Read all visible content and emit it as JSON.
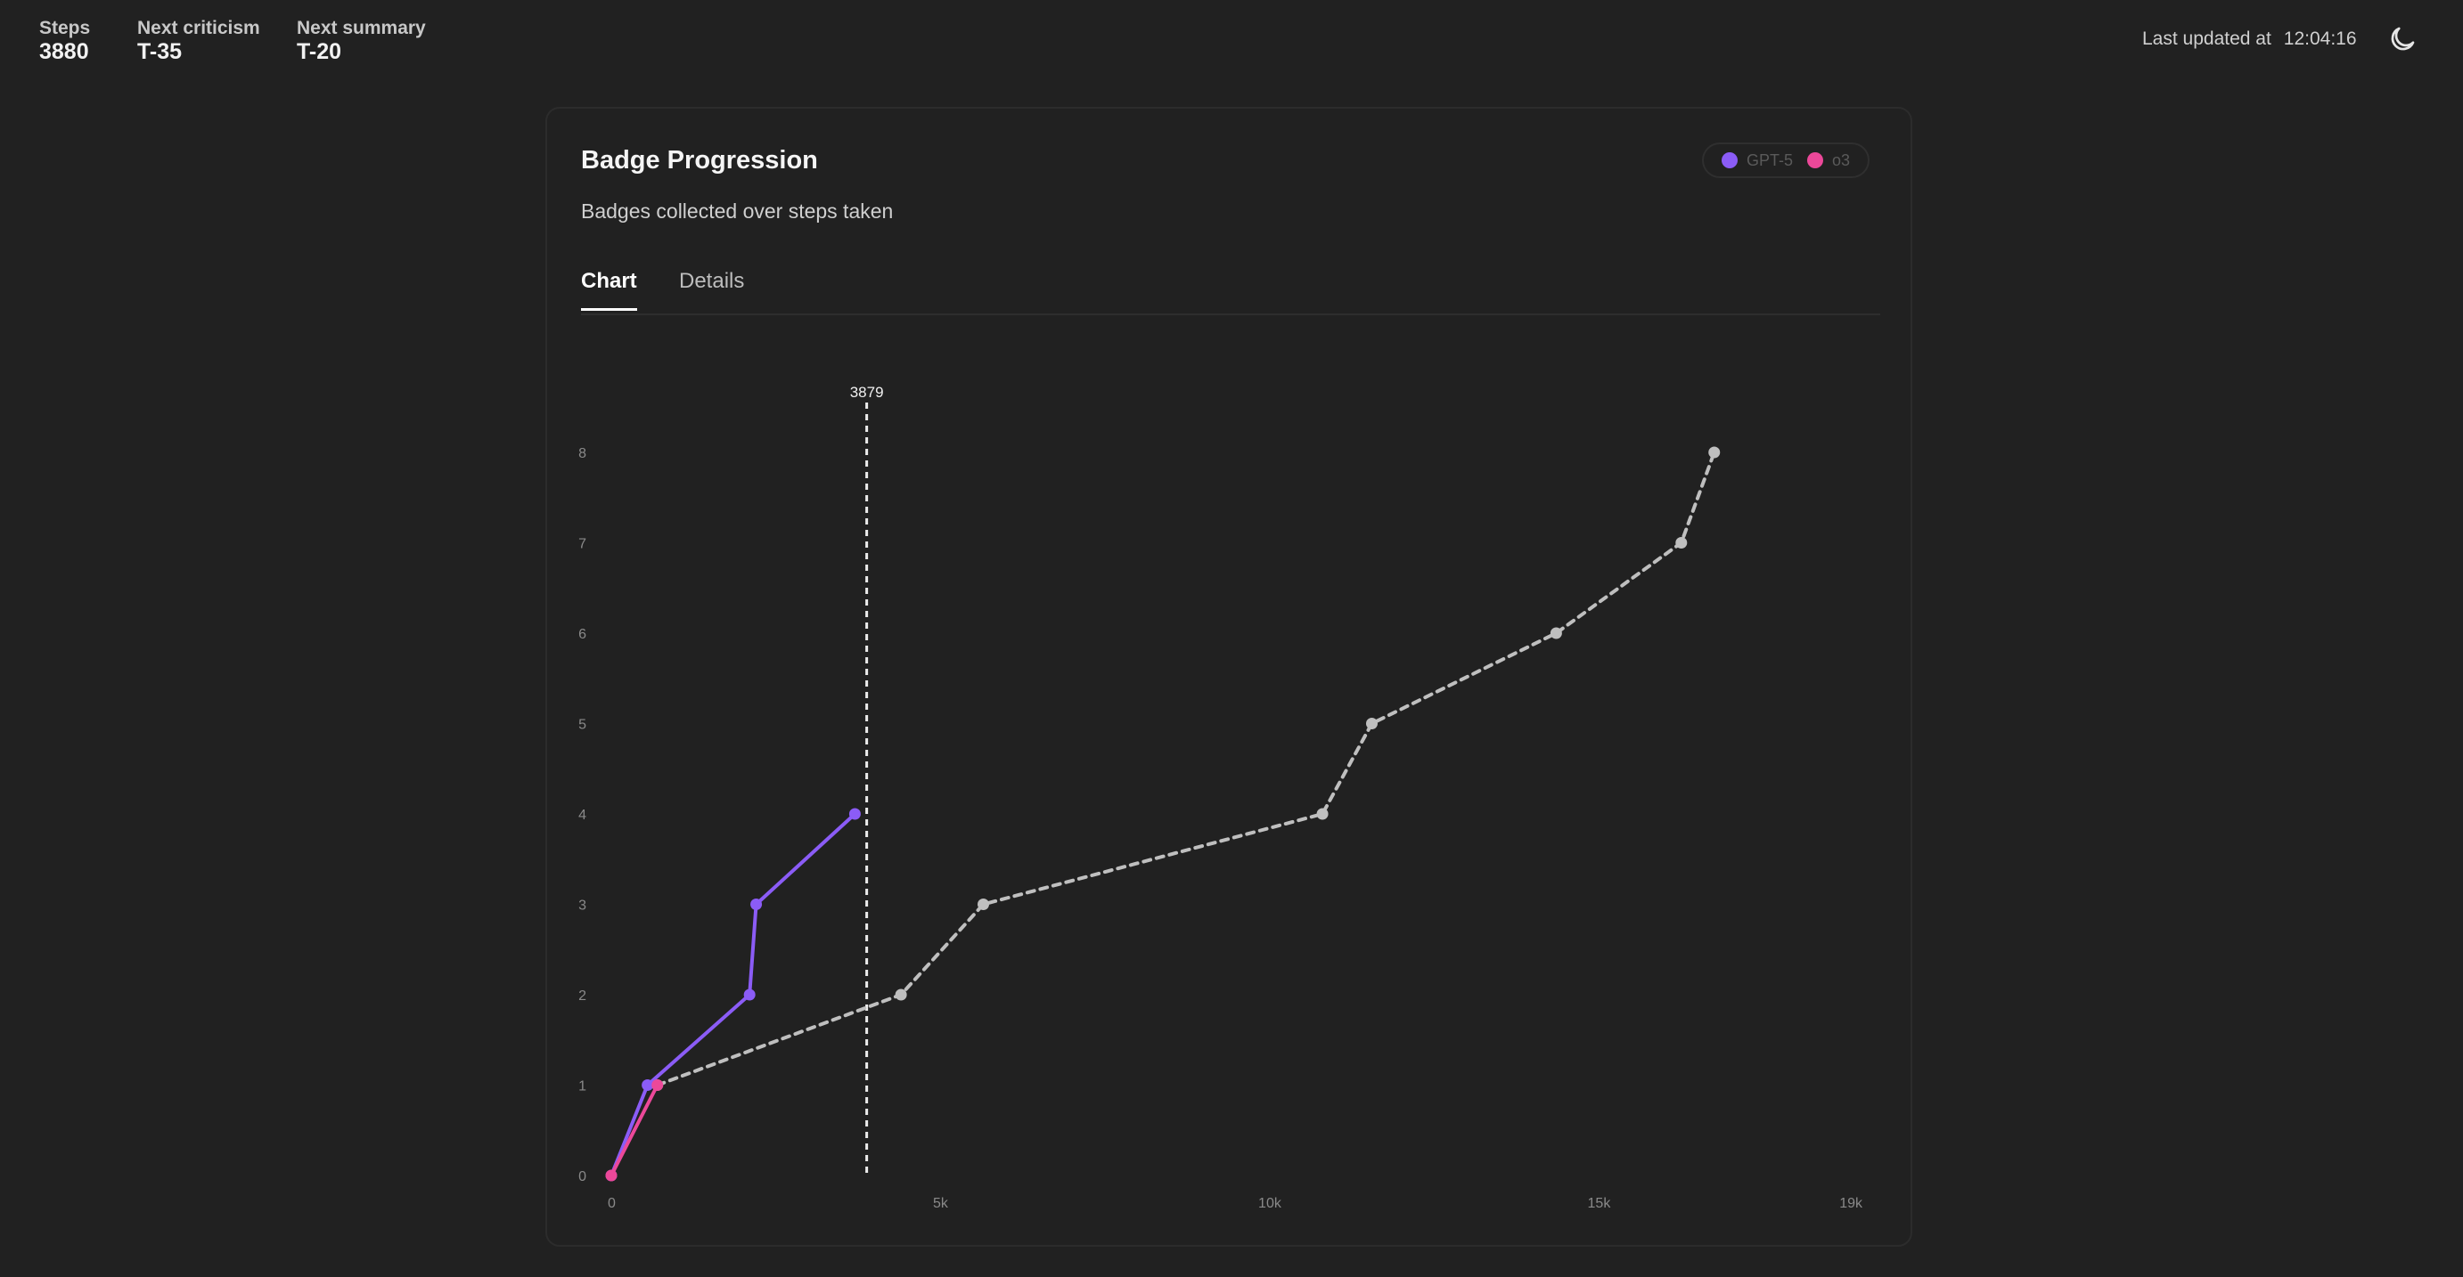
{
  "topbar": {
    "stats": [
      {
        "label": "Steps",
        "value": "3880"
      },
      {
        "label": "Next criticism",
        "value": "T-35"
      },
      {
        "label": "Next summary",
        "value": "T-20"
      }
    ],
    "updated_label": "Last updated at",
    "updated_time": "12:04:16",
    "theme_icon": "moon-icon"
  },
  "card": {
    "title": "Badge Progression",
    "subtitle": "Badges collected over steps taken",
    "tabs": [
      {
        "label": "Chart",
        "active": true
      },
      {
        "label": "Details",
        "active": false
      }
    ],
    "legend": [
      {
        "name": "GPT-5",
        "color": "#8b5cf6"
      },
      {
        "name": "o3",
        "color": "#ec4899"
      }
    ]
  },
  "chart_data": {
    "type": "line",
    "xlim": [
      0,
      19000
    ],
    "ylim": [
      0,
      8
    ],
    "x_ticks": [
      {
        "value": 0,
        "label": "0"
      },
      {
        "value": 5000,
        "label": "5k"
      },
      {
        "value": 10000,
        "label": "10k"
      },
      {
        "value": 15000,
        "label": "15k"
      },
      {
        "value": 19000,
        "label": "19k"
      }
    ],
    "y_ticks": [
      0,
      1,
      2,
      3,
      4,
      5,
      6,
      7,
      8
    ],
    "grid": false,
    "current_step": {
      "value": 3879,
      "label": "3879"
    },
    "series": [
      {
        "name": "GPT-5",
        "color": "#8b5cf6",
        "style": "solid",
        "points": [
          [
            0,
            0
          ],
          [
            550,
            1
          ],
          [
            2100,
            2
          ],
          [
            2200,
            3
          ],
          [
            3700,
            4
          ]
        ]
      },
      {
        "name": "o3",
        "color": "#ec4899",
        "style": "solid",
        "points": [
          [
            0,
            0
          ],
          [
            700,
            1
          ]
        ]
      },
      {
        "color": "#bfbfbf",
        "style": "dashed",
        "points": [
          [
            700,
            1
          ],
          [
            4400,
            2
          ],
          [
            5650,
            3
          ],
          [
            10800,
            4
          ],
          [
            11550,
            5
          ],
          [
            14350,
            6
          ],
          [
            16250,
            7
          ],
          [
            16750,
            8
          ]
        ]
      }
    ]
  }
}
